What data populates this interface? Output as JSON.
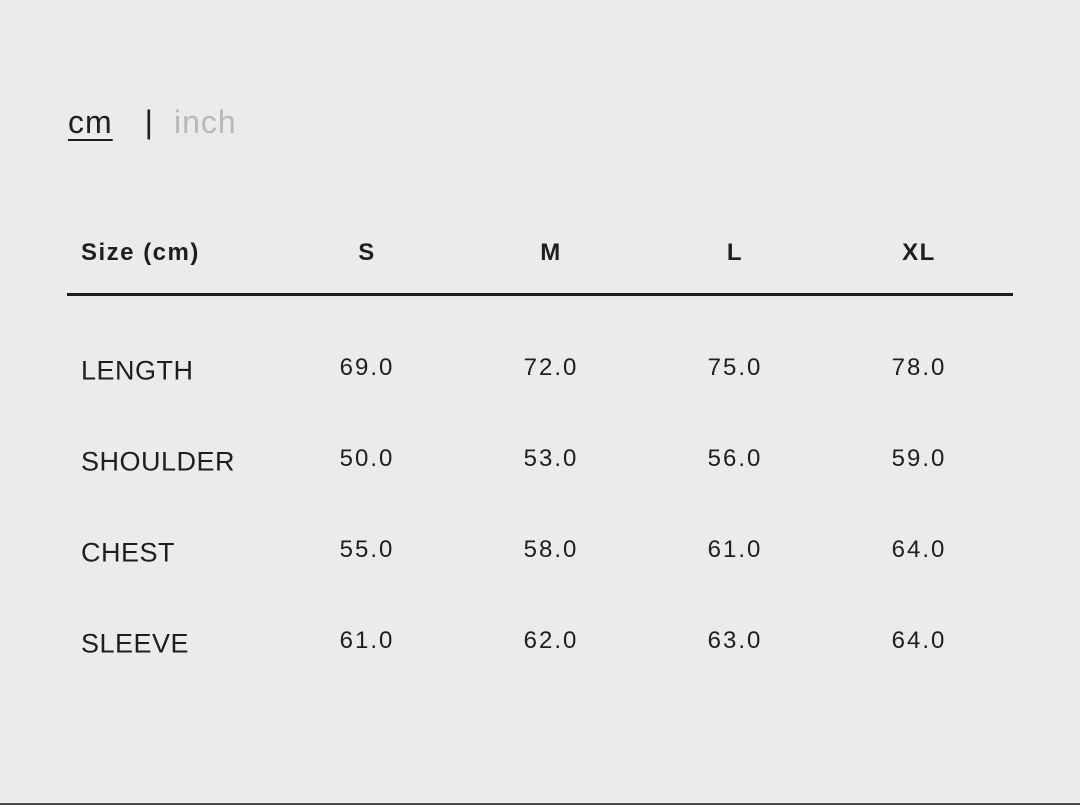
{
  "unit_toggle": {
    "cm": "cm",
    "separator": "|",
    "inch": "inch",
    "active": "cm"
  },
  "table": {
    "corner_header": "Size (cm)",
    "sizes": [
      "S",
      "M",
      "L",
      "XL"
    ],
    "rows": [
      {
        "label": "LENGTH",
        "values": [
          "69.0",
          "72.0",
          "75.0",
          "78.0"
        ]
      },
      {
        "label": "SHOULDER",
        "values": [
          "50.0",
          "53.0",
          "56.0",
          "59.0"
        ]
      },
      {
        "label": "CHEST",
        "values": [
          "55.0",
          "58.0",
          "61.0",
          "64.0"
        ]
      },
      {
        "label": "SLEEVE",
        "values": [
          "61.0",
          "62.0",
          "63.0",
          "64.0"
        ]
      }
    ]
  }
}
